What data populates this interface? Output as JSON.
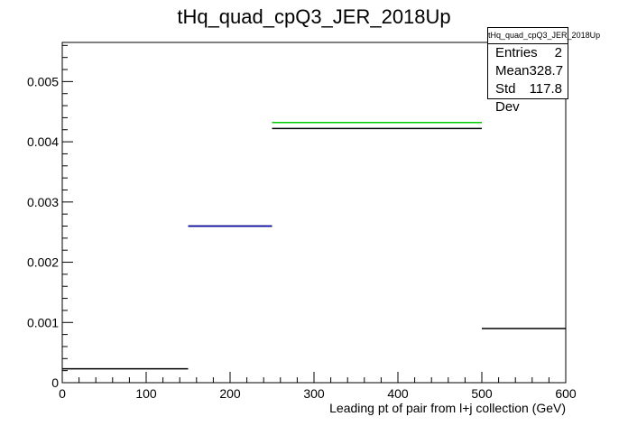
{
  "chart_data": {
    "type": "histogram",
    "title": "tHq_quad_cpQ3_JER_2018Up",
    "xlabel": "Leading pt of pair from l+j collection (GeV)",
    "ylabel": "",
    "xlim": [
      0,
      600
    ],
    "ylim": [
      0,
      0.00565
    ],
    "x_ticks": [
      "0",
      "100",
      "200",
      "300",
      "400",
      "500",
      "600"
    ],
    "y_ticks": [
      "0",
      "0.001",
      "0.002",
      "0.003",
      "0.004",
      "0.005"
    ],
    "grid": false,
    "series": [
      {
        "color": "#000000",
        "bins": [
          {
            "x0": 0,
            "x1": 150,
            "y": 0.00023
          },
          {
            "x0": 150,
            "x1": 250,
            "y": 0.0026
          },
          {
            "x0": 250,
            "x1": 500,
            "y": 0.00422
          },
          {
            "x0": 500,
            "x1": 600,
            "y": 0.0009
          }
        ]
      },
      {
        "color": "#00cc00",
        "bins": [
          {
            "x0": 250,
            "x1": 500,
            "y": 0.00432
          }
        ]
      },
      {
        "color": "#0000aa",
        "bins": [
          {
            "x0": 150,
            "x1": 250,
            "y": 0.0026
          }
        ]
      }
    ],
    "stats_box": {
      "name": "tHq_quad_cpQ3_JER_2018Up",
      "entries_label": "Entries",
      "entries": "2",
      "mean_label": "Mean",
      "mean": "328.7",
      "stddev_label": "Std Dev",
      "stddev": "117.8"
    }
  }
}
